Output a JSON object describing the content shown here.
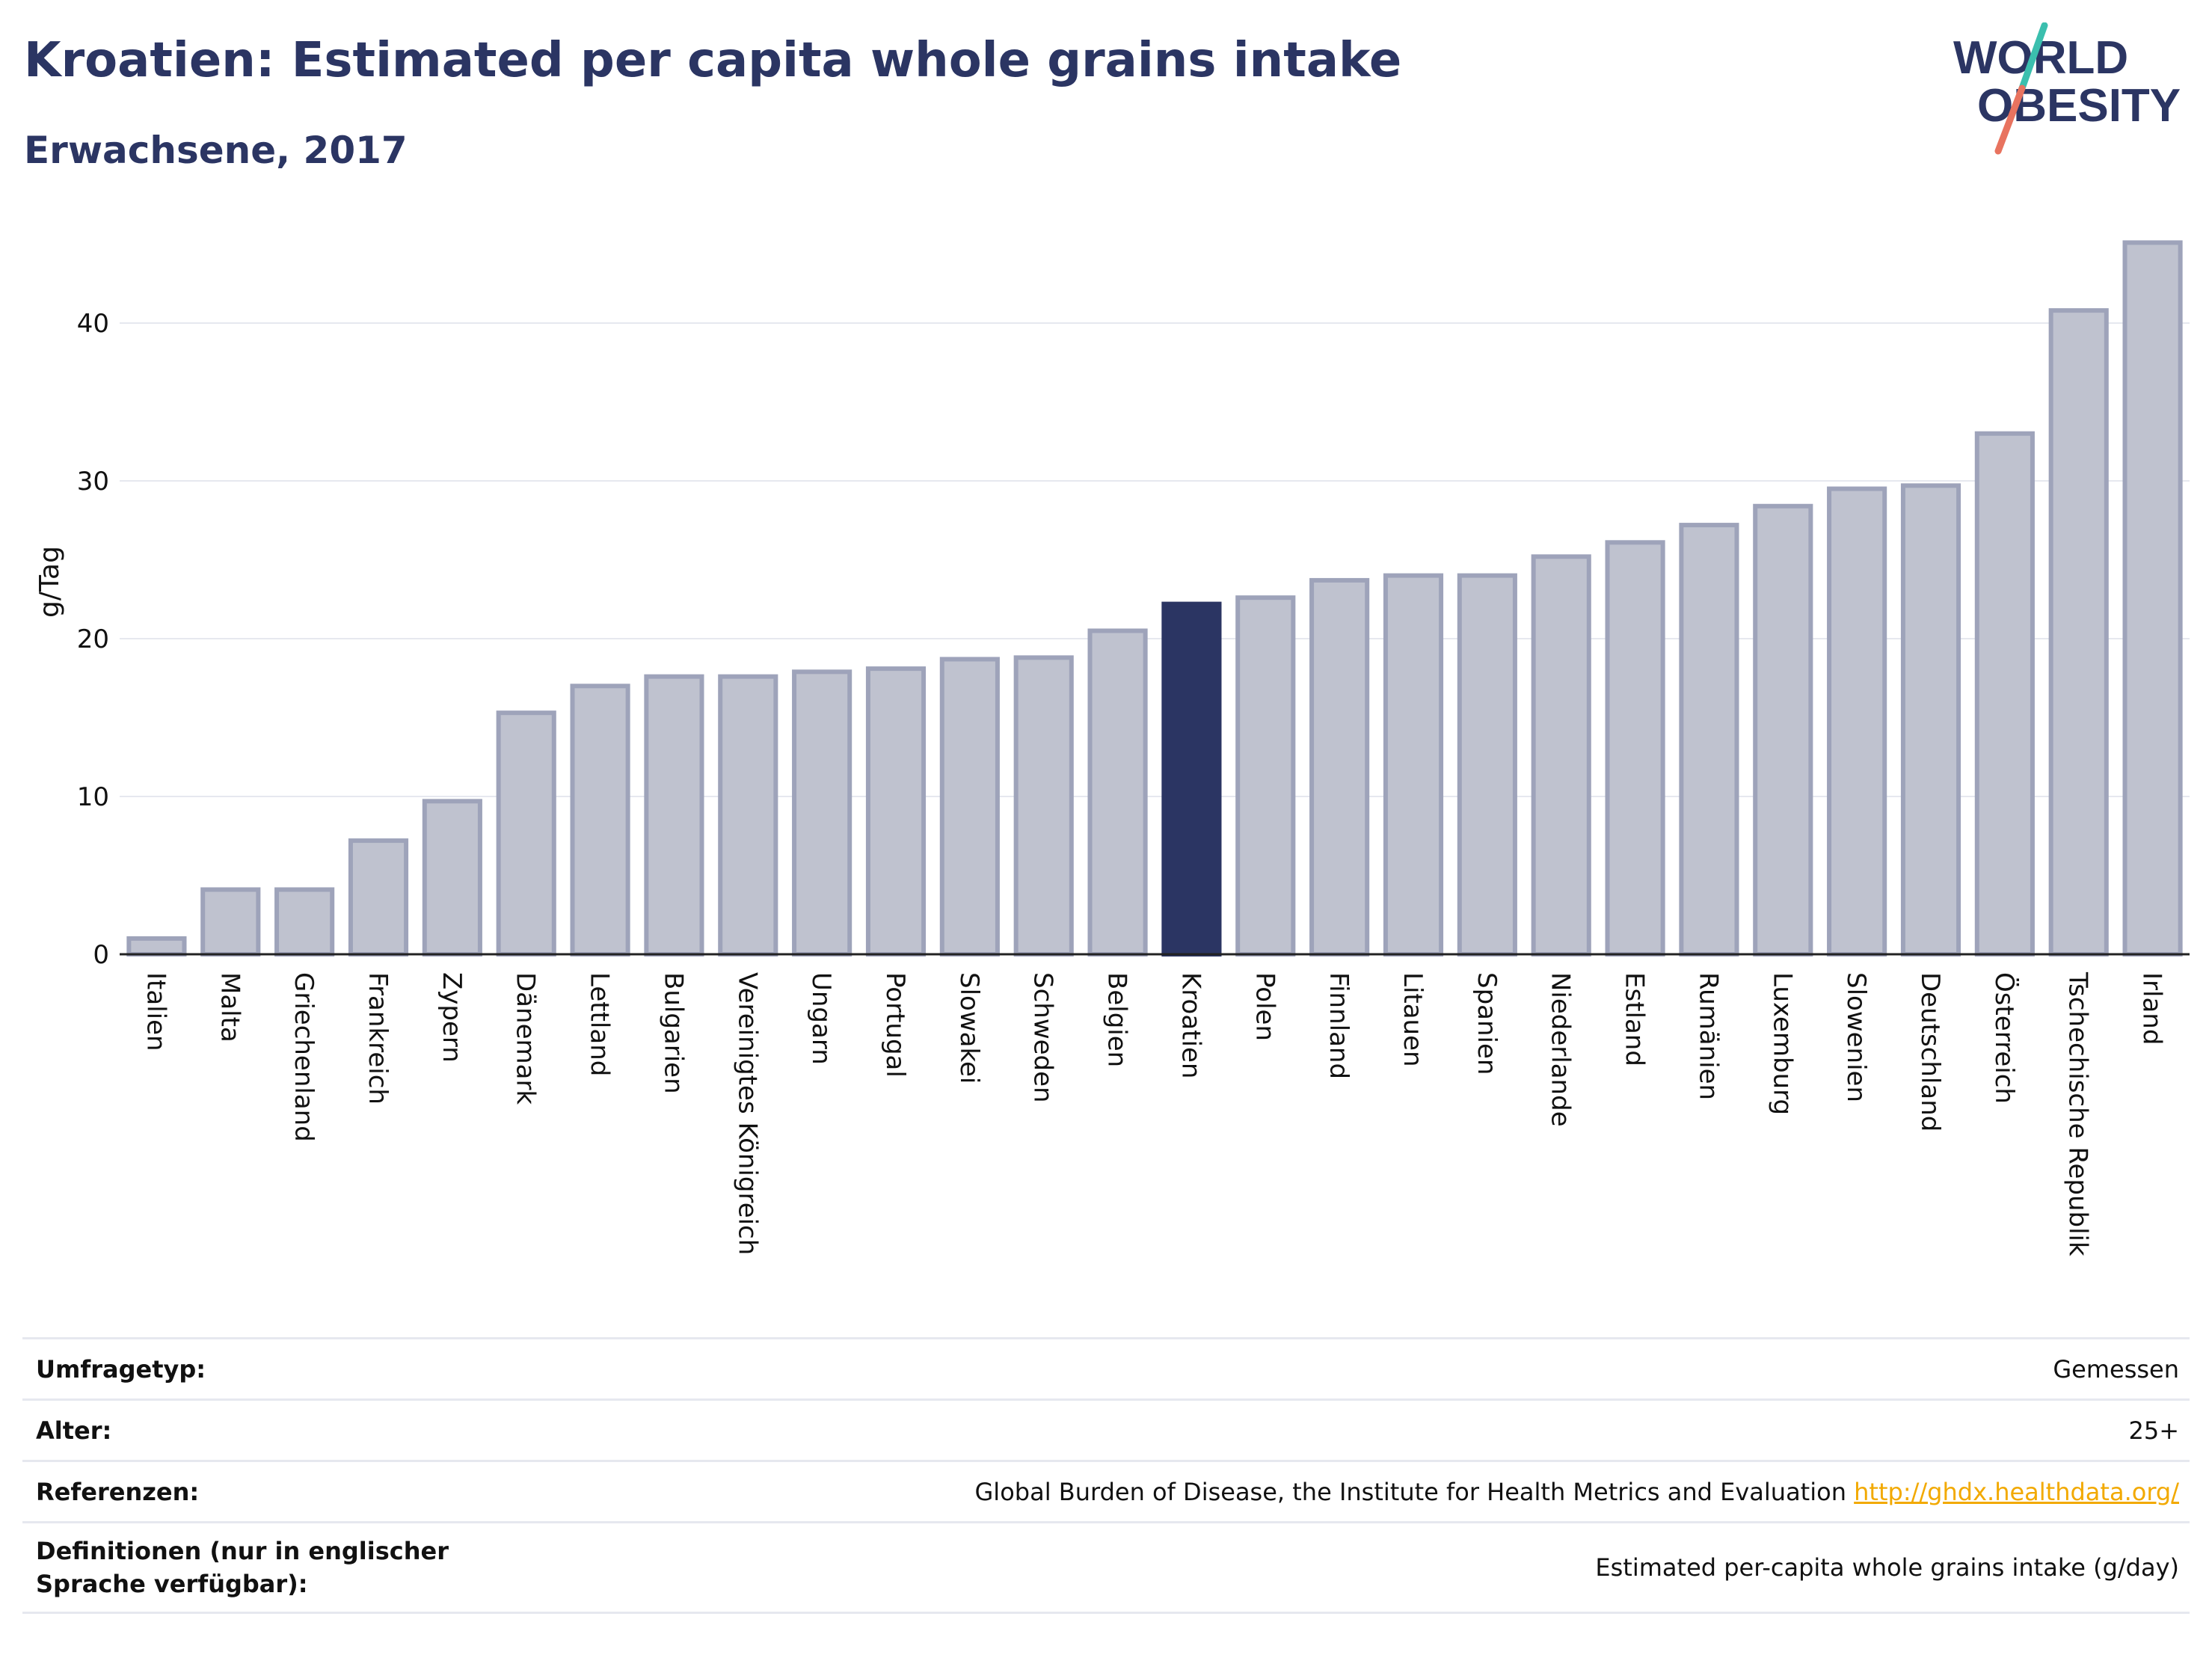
{
  "header": {
    "title": "Kroatien: Estimated per capita whole grains intake",
    "subtitle": "Erwachsene, 2017",
    "logo_text_line1": "WORLD",
    "logo_text_line2": "OBESITY"
  },
  "colors": {
    "title": "#2b3563",
    "bar_default": "#bfc2cf",
    "bar_border": "#9ea3ba",
    "bar_highlight": "#2b3563",
    "grid": "#e6e8ef",
    "logo_teal": "#3bbfae",
    "logo_coral": "#e8735f",
    "link": "#f2a900"
  },
  "chart_data": {
    "type": "bar",
    "title": "Kroatien: Estimated per capita whole grains intake",
    "subtitle": "Erwachsene, 2017",
    "xlabel": "",
    "ylabel": "g/Tag",
    "ylim": [
      0,
      46
    ],
    "yticks": [
      0,
      10,
      20,
      30,
      40
    ],
    "grid": true,
    "highlight": "Kroatien",
    "categories": [
      "Italien",
      "Malta",
      "Griechenland",
      "Frankreich",
      "Zypern",
      "Dänemark",
      "Lettland",
      "Bulgarien",
      "Vereinigtes Königreich",
      "Ungarn",
      "Portugal",
      "Slowakei",
      "Schweden",
      "Belgien",
      "Kroatien",
      "Polen",
      "Finnland",
      "Litauen",
      "Spanien",
      "Niederlande",
      "Estland",
      "Rumänien",
      "Luxemburg",
      "Slowenien",
      "Deutschland",
      "Österreich",
      "Tschechische Republik",
      "Irland"
    ],
    "values": [
      1.0,
      4.1,
      4.1,
      7.2,
      9.7,
      15.3,
      17.0,
      17.6,
      17.6,
      17.9,
      18.1,
      18.7,
      18.8,
      20.5,
      22.2,
      22.6,
      23.7,
      24.0,
      24.0,
      25.2,
      26.1,
      27.2,
      28.4,
      29.5,
      29.7,
      33.0,
      40.8,
      45.1
    ]
  },
  "info": [
    {
      "label": "Umfragetyp:",
      "value": "Gemessen"
    },
    {
      "label": "Alter:",
      "value": "25+"
    },
    {
      "label": "Referenzen:",
      "value": "Global Burden of Disease, the Institute for Health Metrics and Evaluation",
      "link": "http://ghdx.healthdata.org/"
    },
    {
      "label": "Definitionen (nur in englischer Sprache verfügbar):",
      "value": "Estimated per-capita whole grains intake (g/day)"
    }
  ]
}
